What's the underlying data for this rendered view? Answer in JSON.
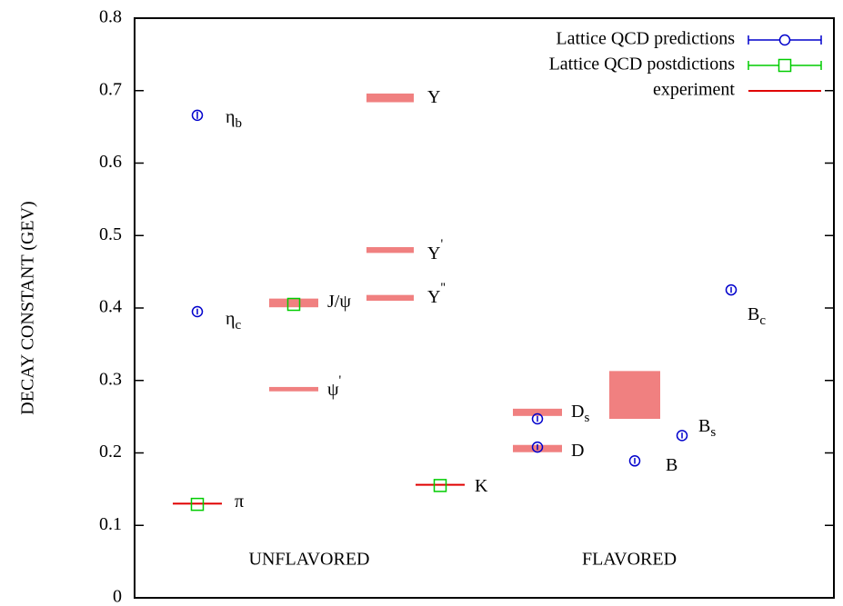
{
  "chart_data": {
    "type": "scatter",
    "y_label": "DECAY CONSTANT (GEV)",
    "ylim": [
      0,
      0.8
    ],
    "yticks": [
      0,
      0.1,
      0.2,
      0.3,
      0.4,
      0.5,
      0.6,
      0.7,
      0.8
    ],
    "groups": [
      "UNFLAVORED",
      "FLAVORED"
    ],
    "categories": [
      {
        "name": "π"
      },
      {
        "name": "η",
        "sub": "c"
      },
      {
        "name": "η",
        "sub": "b"
      },
      {
        "name": "J/ψ"
      },
      {
        "name": "ψ",
        "sup": "'"
      },
      {
        "name": "Υ",
        "sup": "''"
      },
      {
        "name": "Υ",
        "sup": "'"
      },
      {
        "name": "Υ"
      },
      {
        "name": "K"
      },
      {
        "name": "D"
      },
      {
        "name": "D",
        "sub": "s"
      },
      {
        "name": "B"
      },
      {
        "name": "B",
        "sub": "s"
      },
      {
        "name": "B",
        "sub": "c"
      }
    ],
    "legend": "upper right",
    "series": [
      {
        "name": "Lattice QCD predictions",
        "color": "#0000cc",
        "marker": "circle",
        "values": [
          null,
          0.395,
          0.666,
          null,
          null,
          null,
          null,
          null,
          null,
          0.208,
          0.247,
          0.189,
          0.224,
          0.425
        ],
        "errors": [
          null,
          0.004,
          0.005,
          null,
          null,
          null,
          null,
          null,
          null,
          0.004,
          0.004,
          0.004,
          0.004,
          0.004
        ]
      },
      {
        "name": "Lattice QCD postdictions",
        "color": "#00cc00",
        "marker": "square",
        "values": [
          0.129,
          null,
          null,
          0.405,
          null,
          null,
          null,
          null,
          0.155,
          null,
          null,
          null,
          null,
          null
        ],
        "errors": [
          0.002,
          null,
          null,
          0.003,
          null,
          null,
          null,
          null,
          0.002,
          null,
          null,
          null,
          null,
          null
        ]
      },
      {
        "name": "experiment",
        "color": "#f08080",
        "marker": "band",
        "values": [
          0.13,
          null,
          null,
          0.407,
          0.288,
          0.414,
          0.48,
          0.69,
          0.156,
          0.206,
          0.256,
          0.28,
          null,
          null
        ],
        "errors": [
          0.001,
          null,
          null,
          0.006,
          0.003,
          0.004,
          0.004,
          0.006,
          0.001,
          0.005,
          0.005,
          0.033,
          null,
          null
        ]
      }
    ]
  }
}
